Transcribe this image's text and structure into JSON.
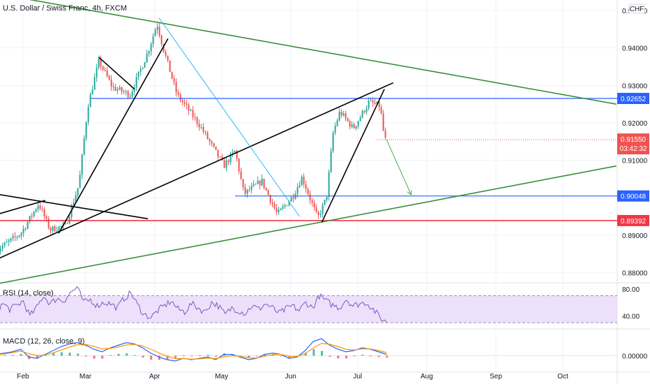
{
  "header": {
    "title": "U.S. Dollar / Swiss Franc, 4h, FXCM",
    "currency": "CHF"
  },
  "colors": {
    "up": "#26a69a",
    "down": "#ef5350",
    "price_line_color": "#ef5350",
    "level_blue": "#2962ff",
    "level_red": "#f23645",
    "trend_green": "#388e3c",
    "trend_black": "#000000",
    "trend_cyan": "#29b6f6",
    "rsi_line": "#7e57c2",
    "rsi_band": "#ede0fa",
    "macd_line": "#2962ff",
    "signal_line": "#ff9800",
    "arrow": "#4caf50"
  },
  "chart_data": [
    {
      "type": "candlestick",
      "title": "U.S. Dollar / Swiss Franc, 4h, FXCM",
      "y_axis": {
        "ticks": [
          "0.95000",
          "0.94000",
          "0.93000",
          "0.92000",
          "0.91000",
          "0.90000",
          "0.89000",
          "0.88000"
        ],
        "tick_values": [
          0.95,
          0.94,
          0.93,
          0.92,
          0.91,
          0.9,
          0.89,
          0.88
        ],
        "ylim": [
          0.8775,
          0.9528
        ]
      },
      "x_axis": {
        "labels": [
          "Feb",
          "Mar",
          "Apr",
          "May",
          "Jun",
          "Jul",
          "Aug",
          "Sep",
          "Oct"
        ]
      },
      "price_path_anchors": [
        {
          "date": "Jan 20",
          "price": 0.8855
        },
        {
          "date": "Feb 01",
          "price": 0.8905
        },
        {
          "date": "Feb 09",
          "price": 0.8985
        },
        {
          "date": "Feb 14",
          "price": 0.8915
        },
        {
          "date": "Feb 21",
          "price": 0.8925
        },
        {
          "date": "Feb 27",
          "price": 0.9035
        },
        {
          "date": "Mar 03",
          "price": 0.9245
        },
        {
          "date": "Mar 08",
          "price": 0.9365
        },
        {
          "date": "Mar 14",
          "price": 0.9295
        },
        {
          "date": "Mar 22",
          "price": 0.9275
        },
        {
          "date": "Mar 30",
          "price": 0.939
        },
        {
          "date": "Apr 03",
          "price": 0.9465
        },
        {
          "date": "Apr 06",
          "price": 0.9395
        },
        {
          "date": "Apr 12",
          "price": 0.9275
        },
        {
          "date": "Apr 22",
          "price": 0.9195
        },
        {
          "date": "May 03",
          "price": 0.9085
        },
        {
          "date": "May 08",
          "price": 0.9125
        },
        {
          "date": "May 12",
          "price": 0.901
        },
        {
          "date": "May 20",
          "price": 0.9045
        },
        {
          "date": "May 27",
          "price": 0.8955
        },
        {
          "date": "Jun 03",
          "price": 0.9005
        },
        {
          "date": "Jun 07",
          "price": 0.9055
        },
        {
          "date": "Jun 14",
          "price": 0.8945
        },
        {
          "date": "Jun 18",
          "price": 0.9
        },
        {
          "date": "Jun 21",
          "price": 0.9175
        },
        {
          "date": "Jun 24",
          "price": 0.923
        },
        {
          "date": "Jun 30",
          "price": 0.9185
        },
        {
          "date": "Jul 07",
          "price": 0.9255
        },
        {
          "date": "Jul 12",
          "price": 0.9245
        },
        {
          "date": "Jul 14",
          "price": 0.9155
        }
      ],
      "levels": [
        {
          "price": 0.92652,
          "label": "0.92652",
          "color": "level_blue"
        },
        {
          "price": 0.90048,
          "label": "0.90048",
          "color": "level_blue"
        },
        {
          "price": 0.89392,
          "label": "0.89392",
          "color": "level_red"
        }
      ],
      "last_price": {
        "price": 0.9155,
        "label": "0.91550",
        "countdown": "03:42:32"
      },
      "trendlines": [
        {
          "color": "trend_green",
          "from": {
            "date": "Jan 20",
            "price": 0.9545
          },
          "to": {
            "date": "Oct 25",
            "price": 0.925
          }
        },
        {
          "color": "trend_green",
          "from": {
            "date": "Jan 20",
            "price": 0.877
          },
          "to": {
            "date": "Oct 25",
            "price": 0.9085
          }
        },
        {
          "color": "trend_black",
          "from": {
            "date": "Jan 20",
            "price": 0.8955
          },
          "to": {
            "date": "Feb 11",
            "price": 0.8993
          }
        },
        {
          "color": "trend_black",
          "from": {
            "date": "Jan 20",
            "price": 0.901
          },
          "to": {
            "date": "Mar 29",
            "price": 0.8944
          }
        },
        {
          "color": "trend_black",
          "from": {
            "date": "Jan 20",
            "price": 0.8835
          },
          "to": {
            "date": "Jul 17",
            "price": 0.9307
          }
        },
        {
          "color": "trend_black",
          "from": {
            "date": "Feb 17",
            "price": 0.8905
          },
          "to": {
            "date": "Apr 07",
            "price": 0.9425
          }
        },
        {
          "color": "trend_black",
          "from": {
            "date": "Mar 07",
            "price": 0.9375
          },
          "to": {
            "date": "Mar 23",
            "price": 0.929
          }
        },
        {
          "color": "trend_black",
          "from": {
            "date": "Jun 15",
            "price": 0.8935
          },
          "to": {
            "date": "Jul 13",
            "price": 0.929
          }
        },
        {
          "color": "trend_cyan",
          "from": {
            "date": "Apr 03",
            "price": 0.948
          },
          "to": {
            "date": "Jun 05",
            "price": 0.895
          }
        }
      ],
      "projection_arrow": {
        "from": {
          "date": "Jul 14",
          "price": 0.9155
        },
        "to": {
          "date": "Jul 25",
          "price": 0.9008
        }
      }
    },
    {
      "type": "line",
      "title": "RSI (14, close)",
      "y_axis": {
        "ticks": [
          "80.00",
          "40.00"
        ],
        "tick_values": [
          80,
          40
        ],
        "ylim": [
          22,
          88
        ]
      },
      "band": [
        30,
        70
      ],
      "series": [
        {
          "name": "RSI",
          "values": [
            46,
            58,
            50,
            55,
            62,
            40,
            52,
            70,
            58,
            66,
            62,
            74,
            82,
            60,
            64,
            55,
            60,
            58,
            52,
            66,
            74,
            56,
            42,
            38,
            48,
            55,
            62,
            50,
            46,
            58,
            52,
            46,
            60,
            55,
            42,
            52,
            48,
            44,
            55,
            50,
            58,
            52,
            44,
            50,
            55,
            48,
            60,
            52,
            70,
            62,
            56,
            52,
            65,
            55,
            58,
            60,
            50,
            38,
            30
          ]
        }
      ]
    },
    {
      "type": "line",
      "title": "MACD (12, 26, close, 9)",
      "y_axis": {
        "ticks": [
          "0.00000"
        ],
        "tick_values": [
          0
        ],
        "ylim": [
          -0.006,
          0.01
        ]
      },
      "series": [
        {
          "name": "MACD",
          "values": [
            0.0005,
            0.001,
            0.0015,
            0.0025,
            -0.0005,
            -0.001,
            0.0005,
            0.002,
            0.0035,
            0.0045,
            0.005,
            0.004,
            0.0025,
            0.0015,
            0.003,
            0.004,
            0.005,
            0.0045,
            0.003,
            0.001,
            -0.0005,
            -0.0015,
            -0.002,
            -0.001,
            -0.0015,
            -0.001,
            -0.0005,
            -0.0015,
            0.0005,
            0.0005,
            -0.0005,
            -0.0015,
            -0.001,
            0.0005,
            0.001,
            0.0005,
            -0.001,
            -0.0005,
            0.002,
            0.0055,
            0.0065,
            0.004,
            0.0025,
            0.0015,
            0.002,
            0.003,
            0.0025,
            0.0015,
            0.0005
          ]
        },
        {
          "name": "Signal",
          "values": [
            0.0003,
            0.0007,
            0.0012,
            0.0018,
            0.0008,
            0.0001,
            0.0002,
            0.0011,
            0.0022,
            0.0033,
            0.0042,
            0.0043,
            0.0036,
            0.0026,
            0.0028,
            0.0033,
            0.0041,
            0.0043,
            0.0037,
            0.0025,
            0.0011,
            -0.0002,
            -0.0011,
            -0.0011,
            -0.0013,
            -0.0012,
            -0.0009,
            -0.0011,
            -0.0004,
            0.0,
            -0.0002,
            -0.0008,
            -0.0009,
            -0.0002,
            0.0004,
            0.0005,
            -0.0002,
            -0.0003,
            0.0008,
            0.003,
            0.0047,
            0.0044,
            0.0035,
            0.0025,
            0.0022,
            0.0026,
            0.0026,
            0.002,
            0.0012
          ]
        }
      ]
    }
  ]
}
